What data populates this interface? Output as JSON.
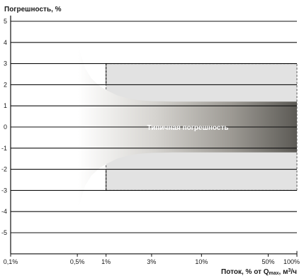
{
  "chart_data": {
    "type": "area",
    "ylabel": "Погрешность, %",
    "xlabel_main": "Поток, % от Q",
    "xlabel_sub": "max",
    "xlabel_tail": ", м",
    "xlabel_sup": "3",
    "xlabel_end": "/ч",
    "annotation": "Типичная погрешность",
    "x_scale": "log",
    "x_ticks": [
      {
        "value": 0.1,
        "label": "0,1%"
      },
      {
        "value": 0.5,
        "label": "0,5%"
      },
      {
        "value": 1,
        "label": "1%"
      },
      {
        "value": 3,
        "label": "3%"
      },
      {
        "value": 10,
        "label": "10%"
      },
      {
        "value": 50,
        "label": "50%"
      },
      {
        "value": 100,
        "label": "100%"
      }
    ],
    "xlim": [
      0.1,
      100
    ],
    "ylim": [
      -6,
      5
    ],
    "y_ticks": [
      5,
      4,
      3,
      2,
      1,
      0,
      -1,
      -2,
      -3,
      -4,
      -5
    ],
    "grid": "horizontal",
    "limit_band": {
      "x_from": 1,
      "x_to": 100,
      "upper": 3,
      "lower": -3,
      "transition_upper": 2,
      "transition_lower": -2
    },
    "typical_error_envelope": {
      "x": [
        0.5,
        0.6,
        0.7,
        0.85,
        1,
        1.3,
        1.7,
        2.2,
        3,
        4,
        5,
        100
      ],
      "upper": [
        4,
        2.8,
        2.3,
        1.95,
        1.75,
        1.5,
        1.35,
        1.27,
        1.22,
        1.21,
        1.2,
        1.2
      ]
    }
  }
}
